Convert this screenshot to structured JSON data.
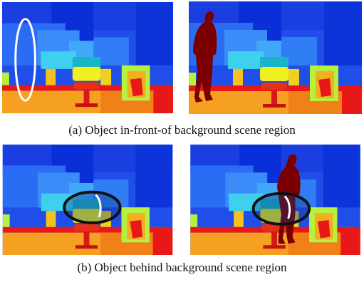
{
  "captions": {
    "a": "(a) Object in-front-of background scene region",
    "b": "(b) Object behind background scene region"
  },
  "colors": {
    "deep_blue": "#0a2fd8",
    "mid_blue": "#1f5cf0",
    "light_blue": "#3b8cf8",
    "cyan": "#3fd0f0",
    "teal": "#18b4c8",
    "yellow": "#f0f020",
    "yellow_green": "#b8f040",
    "orange": "#f5a020",
    "red": "#e81818",
    "dark_red": "#7a0000",
    "green": "#40f060",
    "annotation_white": "#ffffff",
    "annotation_black": "#111111"
  }
}
